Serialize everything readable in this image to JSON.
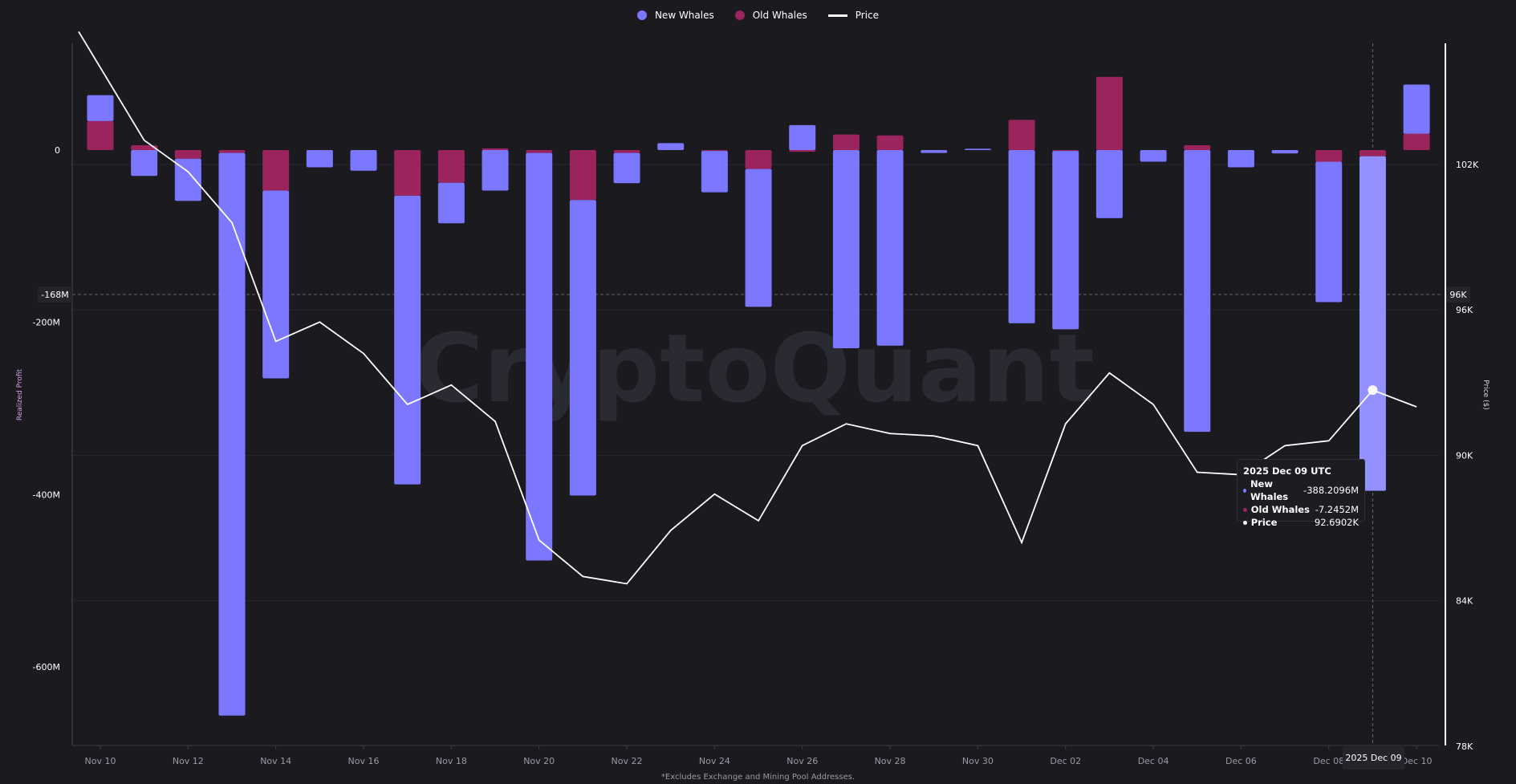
{
  "chart_data": {
    "type": "bar",
    "title": "",
    "xlabel": "",
    "ylabel": "Realized Profit",
    "y2label": "Price ($)",
    "footnote": "*Excludes Exchange and Mining Pool Addresses.",
    "watermark": "CryptoQuant",
    "stacked": true,
    "grid": true,
    "legend_position": "top-center",
    "legend": [
      "New Whales",
      "Old Whales",
      "Price"
    ],
    "colors": {
      "new_whales": "#7b78ff",
      "old_whales": "#9b245f",
      "price": "#ffffff",
      "highlight": "#9391ff",
      "background": "#1a1a1f"
    },
    "categories": [
      "Nov 10",
      "Nov 11",
      "Nov 12",
      "Nov 13",
      "Nov 14",
      "Nov 15",
      "Nov 16",
      "Nov 17",
      "Nov 18",
      "Nov 19",
      "Nov 20",
      "Nov 21",
      "Nov 22",
      "Nov 23",
      "Nov 24",
      "Nov 25",
      "Nov 26",
      "Nov 27",
      "Nov 28",
      "Nov 29",
      "Nov 30",
      "Dec 01",
      "Dec 02",
      "Dec 03",
      "Dec 04",
      "Dec 05",
      "Dec 06",
      "Dec 07",
      "Dec 08",
      "Dec 09",
      "Dec 10"
    ],
    "x_tick_labels": [
      "Nov 10",
      "Nov 12",
      "Nov 14",
      "Nov 16",
      "Nov 18",
      "Nov 20",
      "Nov 22",
      "Nov 24",
      "Nov 26",
      "Nov 28",
      "Nov 30",
      "Dec 02",
      "Dec 04",
      "Dec 06",
      "Dec 08",
      "Dec 10"
    ],
    "y_ticks": [
      {
        "value": 0,
        "label": "0"
      },
      {
        "value": -200,
        "label": "-200M"
      },
      {
        "value": -400,
        "label": "-400M"
      },
      {
        "value": -600,
        "label": "-600M"
      }
    ],
    "y2_ticks": [
      {
        "value": 102,
        "label": "102K"
      },
      {
        "value": 96,
        "label": "96K"
      },
      {
        "value": 90,
        "label": "90K"
      },
      {
        "value": 84,
        "label": "84K"
      },
      {
        "value": 78,
        "label": "78K"
      }
    ],
    "ylim_millions": [
      -720,
      110
    ],
    "y2lim_thousands": [
      78,
      108
    ],
    "series": [
      {
        "name": "New Whales",
        "unit": "M",
        "values": [
          30,
          -30,
          -49,
          -653,
          -218,
          -20,
          -24,
          -335,
          -47,
          -47,
          -473,
          -343,
          -35,
          8,
          -48,
          -160,
          29,
          -230,
          -227,
          -3.4,
          1.5,
          -201,
          -207,
          -79,
          -13.5,
          -327,
          -20,
          -4,
          -163,
          -388.2096,
          57
        ]
      },
      {
        "name": "Old Whales",
        "unit": "M",
        "values": [
          33.7,
          5.6,
          -10,
          -3.4,
          -47,
          0,
          0,
          -53,
          -38,
          2,
          -3.4,
          -58,
          -3.4,
          0,
          -1,
          -22,
          -2,
          18,
          17,
          0,
          0,
          35,
          -1,
          85,
          0,
          5.6,
          0,
          0,
          -13.5,
          -7.2452,
          19
        ]
      },
      {
        "name": "Price",
        "unit": "K",
        "axis": "right",
        "values": [
          106.0,
          103.0,
          101.7,
          99.6,
          94.7,
          95.5,
          94.2,
          92.1,
          92.9,
          91.4,
          86.5,
          85.0,
          84.7,
          86.9,
          88.4,
          87.3,
          90.4,
          91.3,
          90.9,
          90.8,
          90.4,
          86.4,
          91.3,
          93.4,
          92.1,
          89.3,
          89.2,
          90.4,
          90.6,
          92.69,
          92.0
        ]
      }
    ],
    "crosshair": {
      "x_label": "2025 Dec 09",
      "y_label": "-168M",
      "y2_label": "96K"
    },
    "tooltip": {
      "title": "2025 Dec 09 UTC",
      "rows": [
        {
          "label": "New Whales",
          "value": "-388.2096M"
        },
        {
          "label": "Old Whales",
          "value": "-7.2452M"
        },
        {
          "label": "Price",
          "value": "92.6902K"
        }
      ]
    }
  }
}
